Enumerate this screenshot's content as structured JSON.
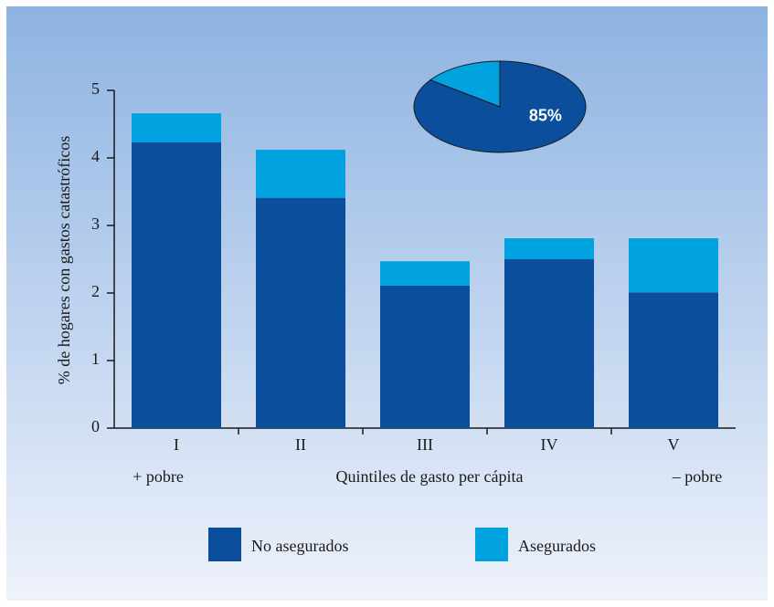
{
  "chart_data": [
    {
      "type": "stacked_bar",
      "categories": [
        "I",
        "II",
        "III",
        "IV",
        "V"
      ],
      "series": [
        {
          "name": "No asegurados",
          "color": "#0b4f9c",
          "values": [
            4.23,
            3.41,
            2.11,
            2.5,
            2.01
          ]
        },
        {
          "name": "Asegurados",
          "color": "#00a2e0",
          "values": [
            0.43,
            0.71,
            0.36,
            0.31,
            0.8
          ]
        }
      ],
      "ylim": [
        0,
        5
      ],
      "yticks": [
        0,
        1,
        2,
        3,
        4,
        5
      ],
      "ylabel": "% de hogares con gastos catastróficos",
      "xlabel": "Quintiles de gasto per cápita",
      "annotations": [
        "+ pobre",
        "– pobre"
      ]
    },
    {
      "type": "pie",
      "values": [
        85,
        15
      ],
      "value_labels": [
        "85%",
        null
      ],
      "colors": [
        "#0b4f9c",
        "#00a2e0"
      ]
    }
  ]
}
